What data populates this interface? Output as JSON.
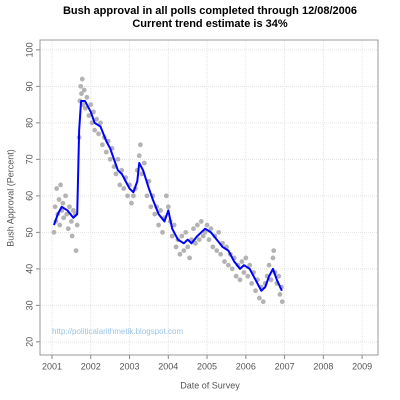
{
  "chart_data": {
    "type": "scatter",
    "title": "Bush approval in all polls completed through 12/08/2006",
    "subtitle": "Current trend estimate is 34%",
    "x_label": "Date of Survey",
    "y_label": "Bush Approval (Percent)",
    "annotation": "http://politicalarithmetik.blogspot.com",
    "xlim": [
      2000.69,
      2009.41
    ],
    "xticks": [
      2001,
      2002,
      2003,
      2004,
      2005,
      2006,
      2007,
      2008,
      2009
    ],
    "ylim": [
      16.4,
      102.7
    ],
    "yticks": [
      20,
      30,
      40,
      50,
      60,
      70,
      80,
      90,
      100
    ],
    "grid": true,
    "series": [
      {
        "type": "scatter",
        "color": "#b3b3b3",
        "x": [
          2001.05,
          2001.08,
          2001.1,
          2001.12,
          2001.15,
          2001.18,
          2001.2,
          2001.22,
          2001.25,
          2001.28,
          2001.3,
          2001.35,
          2001.38,
          2001.42,
          2001.45,
          2001.5,
          2001.52,
          2001.55,
          2001.6,
          2001.62,
          2001.65,
          2001.7,
          2001.72,
          2001.74,
          2001.76,
          2001.78,
          2001.8,
          2001.83,
          2001.86,
          2001.9,
          2001.95,
          2002.0,
          2002.03,
          2002.07,
          2002.1,
          2002.15,
          2002.2,
          2002.25,
          2002.3,
          2002.35,
          2002.4,
          2002.45,
          2002.5,
          2002.55,
          2002.6,
          2002.65,
          2002.7,
          2002.75,
          2002.8,
          2002.85,
          2002.9,
          2002.95,
          2003.0,
          2003.05,
          2003.1,
          2003.15,
          2003.2,
          2003.25,
          2003.28,
          2003.32,
          2003.38,
          2003.45,
          2003.5,
          2003.55,
          2003.6,
          2003.65,
          2003.7,
          2003.75,
          2003.8,
          2003.85,
          2003.9,
          2003.95,
          2004.0,
          2004.05,
          2004.1,
          2004.15,
          2004.2,
          2004.25,
          2004.3,
          2004.35,
          2004.4,
          2004.45,
          2004.5,
          2004.55,
          2004.6,
          2004.65,
          2004.7,
          2004.75,
          2004.8,
          2004.85,
          2004.9,
          2004.95,
          2005.0,
          2005.05,
          2005.1,
          2005.15,
          2005.2,
          2005.25,
          2005.3,
          2005.35,
          2005.4,
          2005.45,
          2005.5,
          2005.55,
          2005.6,
          2005.65,
          2005.7,
          2005.75,
          2005.8,
          2005.85,
          2005.9,
          2005.95,
          2006.0,
          2006.05,
          2006.1,
          2006.15,
          2006.2,
          2006.25,
          2006.3,
          2006.35,
          2006.4,
          2006.45,
          2006.5,
          2006.55,
          2006.6,
          2006.65,
          2006.7,
          2006.72,
          2006.75,
          2006.8,
          2006.85,
          2006.88,
          2006.92,
          2006.94
        ],
        "values": [
          50,
          57,
          53,
          62,
          55,
          59,
          52,
          63,
          56,
          58,
          54,
          60,
          55,
          51,
          57,
          53,
          49,
          56,
          55,
          45,
          52,
          76,
          86,
          90,
          88,
          92,
          85,
          89,
          84,
          87,
          82,
          85,
          80,
          83,
          78,
          81,
          77,
          80,
          74,
          76,
          72,
          75,
          70,
          73,
          68,
          66,
          70,
          63,
          67,
          62,
          65,
          60,
          63,
          58,
          60,
          62,
          67,
          71,
          74,
          66,
          69,
          60,
          64,
          57,
          60,
          55,
          57,
          52,
          56,
          50,
          54,
          60,
          57,
          53,
          49,
          52,
          46,
          48,
          44,
          49,
          45,
          50,
          46,
          43,
          48,
          51,
          47,
          52,
          48,
          53,
          49,
          50,
          52,
          48,
          51,
          46,
          49,
          45,
          50,
          44,
          47,
          42,
          46,
          41,
          44,
          40,
          43,
          38,
          41,
          37,
          42,
          39,
          43,
          38,
          41,
          36,
          39,
          34,
          37,
          32,
          35,
          31,
          36,
          38,
          41,
          37,
          43,
          45,
          39,
          36,
          38,
          33,
          35,
          31
        ]
      },
      {
        "type": "line",
        "color": "#0000ff",
        "x": [
          2001.05,
          2001.15,
          2001.25,
          2001.4,
          2001.55,
          2001.65,
          2001.7,
          2001.75,
          2001.85,
          2002.0,
          2002.1,
          2002.25,
          2002.4,
          2002.5,
          2002.6,
          2002.7,
          2002.8,
          2002.9,
          2003.0,
          2003.1,
          2003.2,
          2003.25,
          2003.35,
          2003.5,
          2003.6,
          2003.75,
          2003.9,
          2004.0,
          2004.1,
          2004.25,
          2004.4,
          2004.5,
          2004.6,
          2004.75,
          2004.85,
          2004.95,
          2005.1,
          2005.25,
          2005.4,
          2005.55,
          2005.7,
          2005.85,
          2005.95,
          2006.1,
          2006.25,
          2006.4,
          2006.5,
          2006.6,
          2006.7,
          2006.8,
          2006.93
        ],
        "values": [
          52,
          55,
          57,
          56,
          54,
          55,
          78,
          86,
          86,
          83,
          80,
          79,
          75,
          73,
          70,
          67,
          66,
          64,
          62,
          61,
          64,
          69,
          67,
          62,
          59,
          55,
          53,
          56,
          51,
          48,
          47,
          48,
          47,
          49,
          50,
          51,
          50,
          48,
          46,
          45,
          42,
          40,
          41,
          40,
          37,
          34,
          35,
          38,
          40,
          37,
          34
        ]
      }
    ]
  }
}
